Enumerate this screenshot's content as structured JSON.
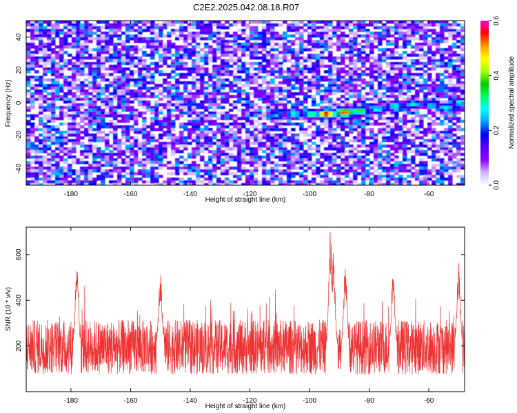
{
  "title": "C2E2.2025.042.08.18.R07",
  "chart_data": [
    {
      "type": "heatmap",
      "xlabel": "Height of straight line (km)",
      "ylabel": "Frequency (Hz)",
      "xlim": [
        -195,
        -48
      ],
      "ylim": [
        -50,
        50
      ],
      "x_ticks": [
        -180,
        -160,
        -140,
        -120,
        -100,
        -80,
        -60
      ],
      "y_ticks": [
        -40,
        -20,
        0,
        20,
        40
      ],
      "colorbar": {
        "label": "Normalized spectral amplitude",
        "range": [
          0,
          0.6
        ],
        "ticks": [
          "0.0",
          "0.2",
          "0.4",
          "0.6"
        ],
        "colors": [
          "#ffffff",
          "#cfb7ff",
          "#8f00ff",
          "#5500ff",
          "#0000ff",
          "#00a0ff",
          "#00ffff",
          "#00ff60",
          "#00cc00",
          "#aaff00",
          "#ffff00",
          "#ff9900",
          "#ff0000",
          "#ff00cc"
        ]
      },
      "noise_level": [
        0.0,
        0.2
      ],
      "signal_track": [
        {
          "x": -112,
          "y": -7,
          "amp": 0.25
        },
        {
          "x": -106,
          "y": -6,
          "amp": 0.3
        },
        {
          "x": -100,
          "y": -6,
          "amp": 0.35
        },
        {
          "x": -95,
          "y": -6,
          "amp": 0.6
        },
        {
          "x": -89,
          "y": -5,
          "amp": 0.55
        },
        {
          "x": -84,
          "y": -4,
          "amp": 0.4
        },
        {
          "x": -78,
          "y": -3,
          "amp": 0.3
        },
        {
          "x": -72,
          "y": -1,
          "amp": 0.3
        },
        {
          "x": -66,
          "y": 0,
          "amp": 0.3
        },
        {
          "x": -60,
          "y": 0,
          "amp": 0.25
        },
        {
          "x": -55,
          "y": -2,
          "amp": 0.3
        },
        {
          "x": -50,
          "y": 1,
          "amp": 0.3
        },
        {
          "x": -57,
          "y": 9,
          "amp": 0.25
        }
      ]
    },
    {
      "type": "line",
      "xlabel": "Height of straight line (km)",
      "ylabel": "SNR (10 * v/v)",
      "xlim": [
        -195,
        -48
      ],
      "ylim": [
        0,
        720
      ],
      "x_ticks": [
        -180,
        -160,
        -140,
        -120,
        -100,
        -80,
        -60
      ],
      "y_ticks": [
        200,
        400,
        600
      ],
      "color": "#ee3333",
      "baseline_mean": 195,
      "baseline_spread": 120,
      "peaks": [
        {
          "x": -93,
          "y": 715
        },
        {
          "x": -92,
          "y": 620
        },
        {
          "x": -88,
          "y": 560
        },
        {
          "x": -178,
          "y": 560
        },
        {
          "x": -50,
          "y": 575
        },
        {
          "x": -150,
          "y": 530
        },
        {
          "x": -72,
          "y": 520
        }
      ]
    }
  ]
}
